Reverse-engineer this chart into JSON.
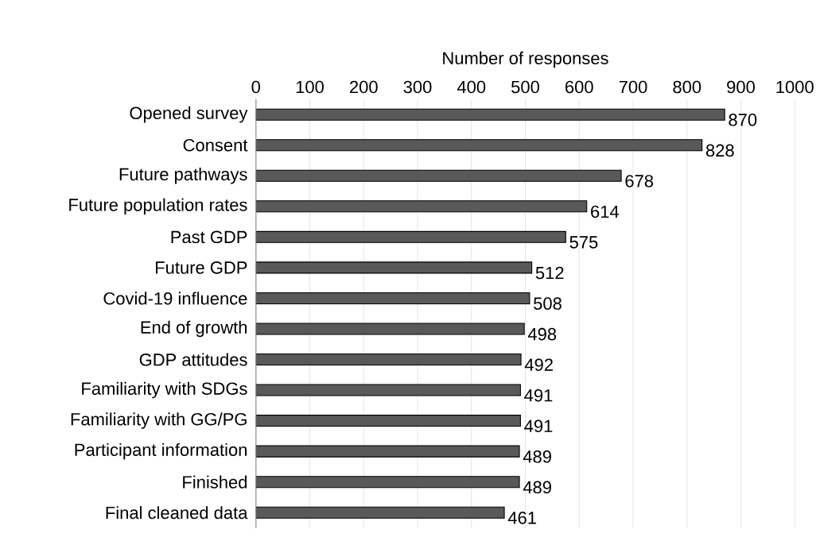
{
  "chart_data": {
    "type": "bar",
    "orientation": "horizontal",
    "xlabel": "Number of responses",
    "categories": [
      "Opened survey",
      "Consent",
      "Future pathways",
      "Future population rates",
      "Past GDP",
      "Future GDP",
      "Covid-19 influence",
      "End of growth",
      "GDP attitudes",
      "Familiarity with SDGs",
      "Familiarity with GG/PG",
      "Participant information",
      "Finished",
      "Final cleaned data"
    ],
    "values": [
      870,
      828,
      678,
      614,
      575,
      512,
      508,
      498,
      492,
      491,
      491,
      489,
      489,
      461
    ],
    "color": "#595959",
    "xlim": [
      0,
      1000
    ],
    "xticks": [
      0,
      100,
      200,
      300,
      400,
      500,
      600,
      700,
      800,
      900,
      1000
    ],
    "grid": "x",
    "data_labels": true
  }
}
